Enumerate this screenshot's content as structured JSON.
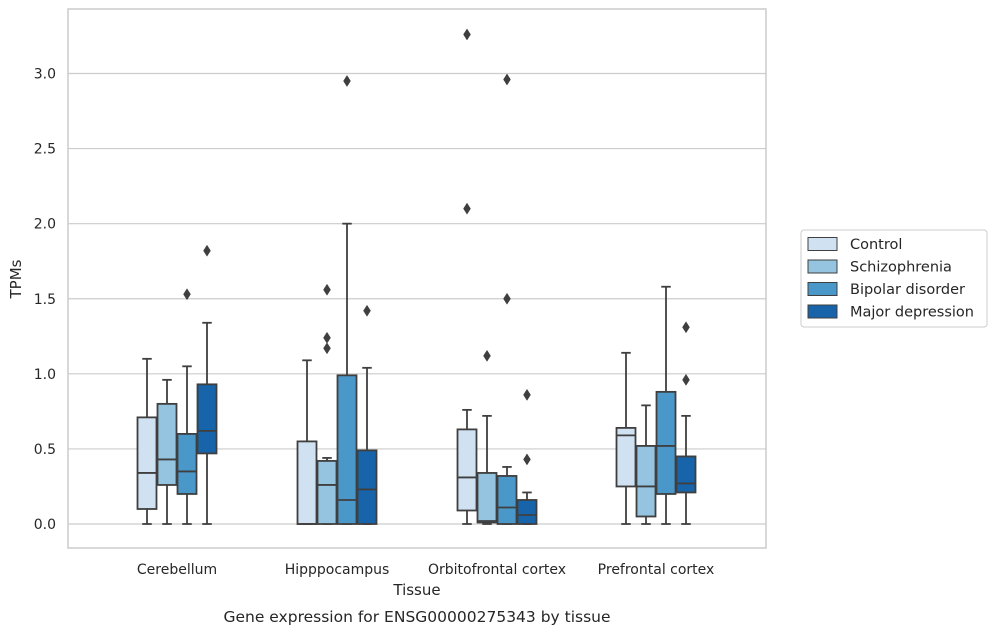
{
  "chart_data": {
    "type": "box",
    "caption": "Gene expression for ENSG00000275343 by tissue",
    "xlabel": "Tissue",
    "ylabel": "TPMs",
    "ylim": [
      -0.16,
      3.43
    ],
    "yticks": [
      0.0,
      0.5,
      1.0,
      1.5,
      2.0,
      2.5,
      3.0
    ],
    "ytick_labels": [
      "0.0",
      "0.5",
      "1.0",
      "1.5",
      "2.0",
      "2.5",
      "3.0"
    ],
    "grid": "horizontal",
    "legend_position": "right",
    "categories": [
      "Cerebellum",
      "Hipppocampus",
      "Orbitofrontal cortex",
      "Prefrontal cortex"
    ],
    "series": [
      {
        "name": "Control",
        "color": "#d0e1f2",
        "boxes": [
          {
            "whislo": 0.0,
            "q1": 0.1,
            "med": 0.34,
            "q3": 0.71,
            "whishi": 1.1,
            "fliers": []
          },
          {
            "whislo": 0.0,
            "q1": 0.0,
            "med": 0.0,
            "q3": 0.55,
            "whishi": 1.09,
            "fliers": []
          },
          {
            "whislo": 0.0,
            "q1": 0.09,
            "med": 0.31,
            "q3": 0.63,
            "whishi": 0.76,
            "fliers": [
              2.1,
              3.26
            ]
          },
          {
            "whislo": 0.0,
            "q1": 0.25,
            "med": 0.59,
            "q3": 0.64,
            "whishi": 1.14,
            "fliers": []
          }
        ]
      },
      {
        "name": "Schizophrenia",
        "color": "#94c4df",
        "boxes": [
          {
            "whislo": 0.0,
            "q1": 0.26,
            "med": 0.43,
            "q3": 0.8,
            "whishi": 0.96,
            "fliers": []
          },
          {
            "whislo": 0.0,
            "q1": 0.0,
            "med": 0.26,
            "q3": 0.42,
            "whishi": 0.44,
            "fliers": [
              1.17,
              1.24,
              1.56
            ]
          },
          {
            "whislo": 0.0,
            "q1": 0.01,
            "med": 0.02,
            "q3": 0.34,
            "whishi": 0.72,
            "fliers": [
              1.12
            ]
          },
          {
            "whislo": 0.0,
            "q1": 0.05,
            "med": 0.25,
            "q3": 0.52,
            "whishi": 0.79,
            "fliers": []
          }
        ]
      },
      {
        "name": "Bipolar disorder",
        "color": "#4a98c9",
        "boxes": [
          {
            "whislo": 0.0,
            "q1": 0.2,
            "med": 0.35,
            "q3": 0.6,
            "whishi": 1.05,
            "fliers": [
              1.53
            ]
          },
          {
            "whislo": 0.0,
            "q1": 0.0,
            "med": 0.16,
            "q3": 0.99,
            "whishi": 2.0,
            "fliers": [
              2.95
            ]
          },
          {
            "whislo": 0.0,
            "q1": 0.0,
            "med": 0.11,
            "q3": 0.32,
            "whishi": 0.38,
            "fliers": [
              1.5,
              2.96
            ]
          },
          {
            "whislo": 0.0,
            "q1": 0.2,
            "med": 0.52,
            "q3": 0.88,
            "whishi": 1.58,
            "fliers": []
          }
        ]
      },
      {
        "name": "Major depression",
        "color": "#1764ab",
        "boxes": [
          {
            "whislo": 0.0,
            "q1": 0.47,
            "med": 0.62,
            "q3": 0.93,
            "whishi": 1.34,
            "fliers": [
              1.82
            ]
          },
          {
            "whislo": 0.0,
            "q1": 0.0,
            "med": 0.23,
            "q3": 0.49,
            "whishi": 1.04,
            "fliers": [
              1.42
            ]
          },
          {
            "whislo": 0.0,
            "q1": 0.0,
            "med": 0.06,
            "q3": 0.16,
            "whishi": 0.21,
            "fliers": [
              0.43,
              0.86
            ]
          },
          {
            "whislo": 0.0,
            "q1": 0.21,
            "med": 0.27,
            "q3": 0.45,
            "whishi": 0.72,
            "fliers": [
              0.96,
              1.31
            ]
          }
        ]
      }
    ]
  }
}
